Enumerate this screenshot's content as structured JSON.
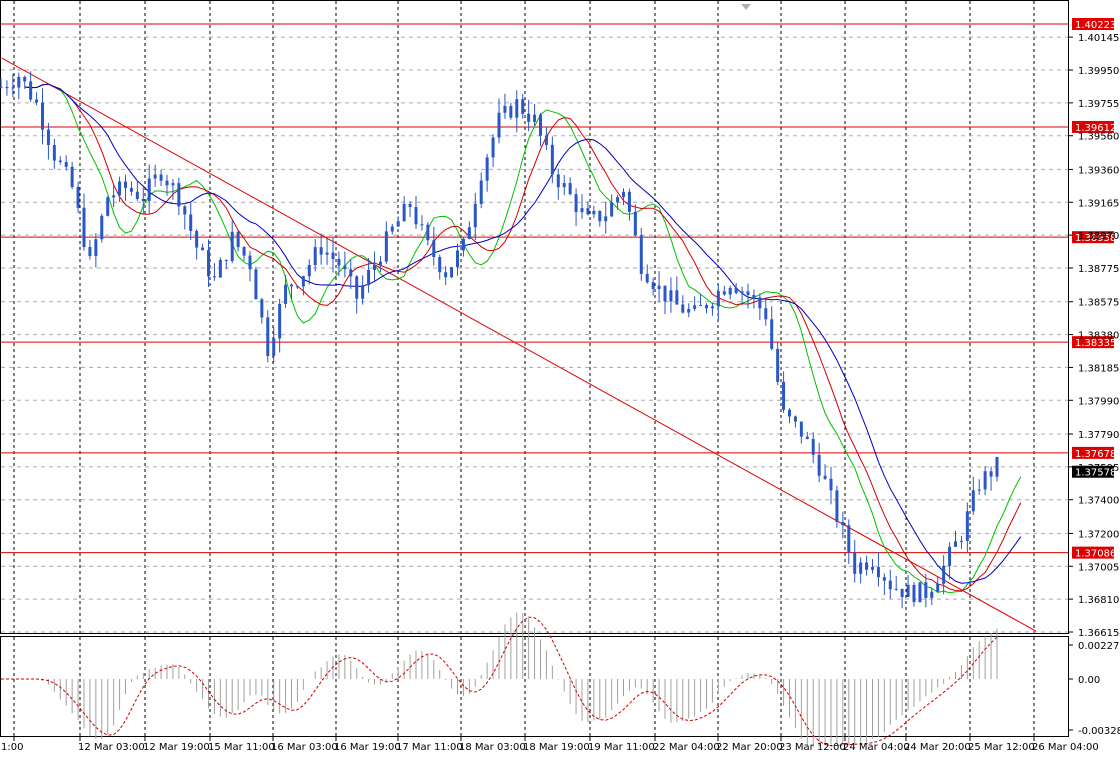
{
  "chart_data": {
    "type": "candlestick",
    "price_axis": {
      "ylim": [
        1.66615,
        1.40223
      ],
      "ticks": [
        "1.40145",
        "1.39950",
        "1.39755",
        "1.39560",
        "1.39360",
        "1.39165",
        "1.38970",
        "1.38775",
        "1.38575",
        "1.38380",
        "1.38185",
        "1.37990",
        "1.37790",
        "1.37595",
        "1.37400",
        "1.37200",
        "1.37005",
        "1.36810",
        "1.36615"
      ],
      "tick_values": [
        1.40145,
        1.3995,
        1.39755,
        1.3956,
        1.3936,
        1.39165,
        1.3897,
        1.38775,
        1.38575,
        1.3838,
        1.38185,
        1.3799,
        1.3779,
        1.37595,
        1.374,
        1.372,
        1.37005,
        1.3681,
        1.36615
      ]
    },
    "levels": [
      {
        "label": "1.40223",
        "value": 1.40223
      },
      {
        "label": "1.39612",
        "value": 1.39612
      },
      {
        "label": "1.38958",
        "value": 1.38958
      },
      {
        "label": "1.38335",
        "value": 1.38335
      },
      {
        "label": "1.37678",
        "value": 1.37678
      },
      {
        "label": "1.37086",
        "value": 1.37086
      }
    ],
    "current_price": {
      "label": "1.37578",
      "value": 1.37578
    },
    "time_axis": [
      "1:00",
      "12 Mar 03:00",
      "12 Mar 19:00",
      "15 Mar 11:00",
      "16 Mar 03:00",
      "16 Mar 19:00",
      "17 Mar 11:00",
      "18 Mar 03:00",
      "18 Mar 19:00",
      "19 Mar 11:00",
      "22 Mar 04:00",
      "22 Mar 20:00",
      "23 Mar 12:00",
      "24 Mar 04:00",
      "24 Mar 20:00",
      "25 Mar 12:00",
      "26 Mar 04:00"
    ],
    "trendline": {
      "from": {
        "x": 0,
        "price": 1.4002
      },
      "to": {
        "x": 165,
        "price": 1.3662
      }
    },
    "oscillator": {
      "ticks": [
        "0.00227",
        "0.00",
        "-0.003286"
      ],
      "tick_values": [
        0.00227,
        0.0,
        -0.003286
      ]
    },
    "series_path": [
      [
        0,
        1.3985
      ],
      [
        3,
        1.3992
      ],
      [
        6,
        1.3975
      ],
      [
        9,
        1.3945
      ],
      [
        12,
        1.3925
      ],
      [
        15,
        1.388
      ],
      [
        18,
        1.392
      ],
      [
        21,
        1.3925
      ],
      [
        24,
        1.392
      ],
      [
        27,
        1.3935
      ],
      [
        30,
        1.392
      ],
      [
        33,
        1.389
      ],
      [
        36,
        1.387
      ],
      [
        39,
        1.3895
      ],
      [
        42,
        1.388
      ],
      [
        45,
        1.383
      ],
      [
        48,
        1.3865
      ],
      [
        51,
        1.3875
      ],
      [
        54,
        1.389
      ],
      [
        57,
        1.388
      ],
      [
        60,
        1.386
      ],
      [
        63,
        1.388
      ],
      [
        66,
        1.39
      ],
      [
        69,
        1.3915
      ],
      [
        72,
        1.389
      ],
      [
        75,
        1.3875
      ],
      [
        78,
        1.389
      ],
      [
        81,
        1.3935
      ],
      [
        84,
        1.3965
      ],
      [
        87,
        1.3975
      ],
      [
        90,
        1.3965
      ],
      [
        93,
        1.3935
      ],
      [
        96,
        1.392
      ],
      [
        99,
        1.3905
      ],
      [
        102,
        1.391
      ],
      [
        105,
        1.3925
      ],
      [
        108,
        1.388
      ],
      [
        111,
        1.3865
      ],
      [
        114,
        1.3855
      ],
      [
        117,
        1.385
      ],
      [
        120,
        1.386
      ],
      [
        123,
        1.387
      ],
      [
        126,
        1.3862
      ],
      [
        129,
        1.385
      ],
      [
        132,
        1.379
      ],
      [
        135,
        1.378
      ],
      [
        138,
        1.376
      ],
      [
        141,
        1.373
      ],
      [
        144,
        1.37
      ],
      [
        147,
        1.3705
      ],
      [
        150,
        1.369
      ],
      [
        153,
        1.3685
      ],
      [
        156,
        1.3685
      ],
      [
        159,
        1.37
      ],
      [
        162,
        1.372
      ],
      [
        165,
        1.375
      ],
      [
        168,
        1.376
      ]
    ]
  }
}
